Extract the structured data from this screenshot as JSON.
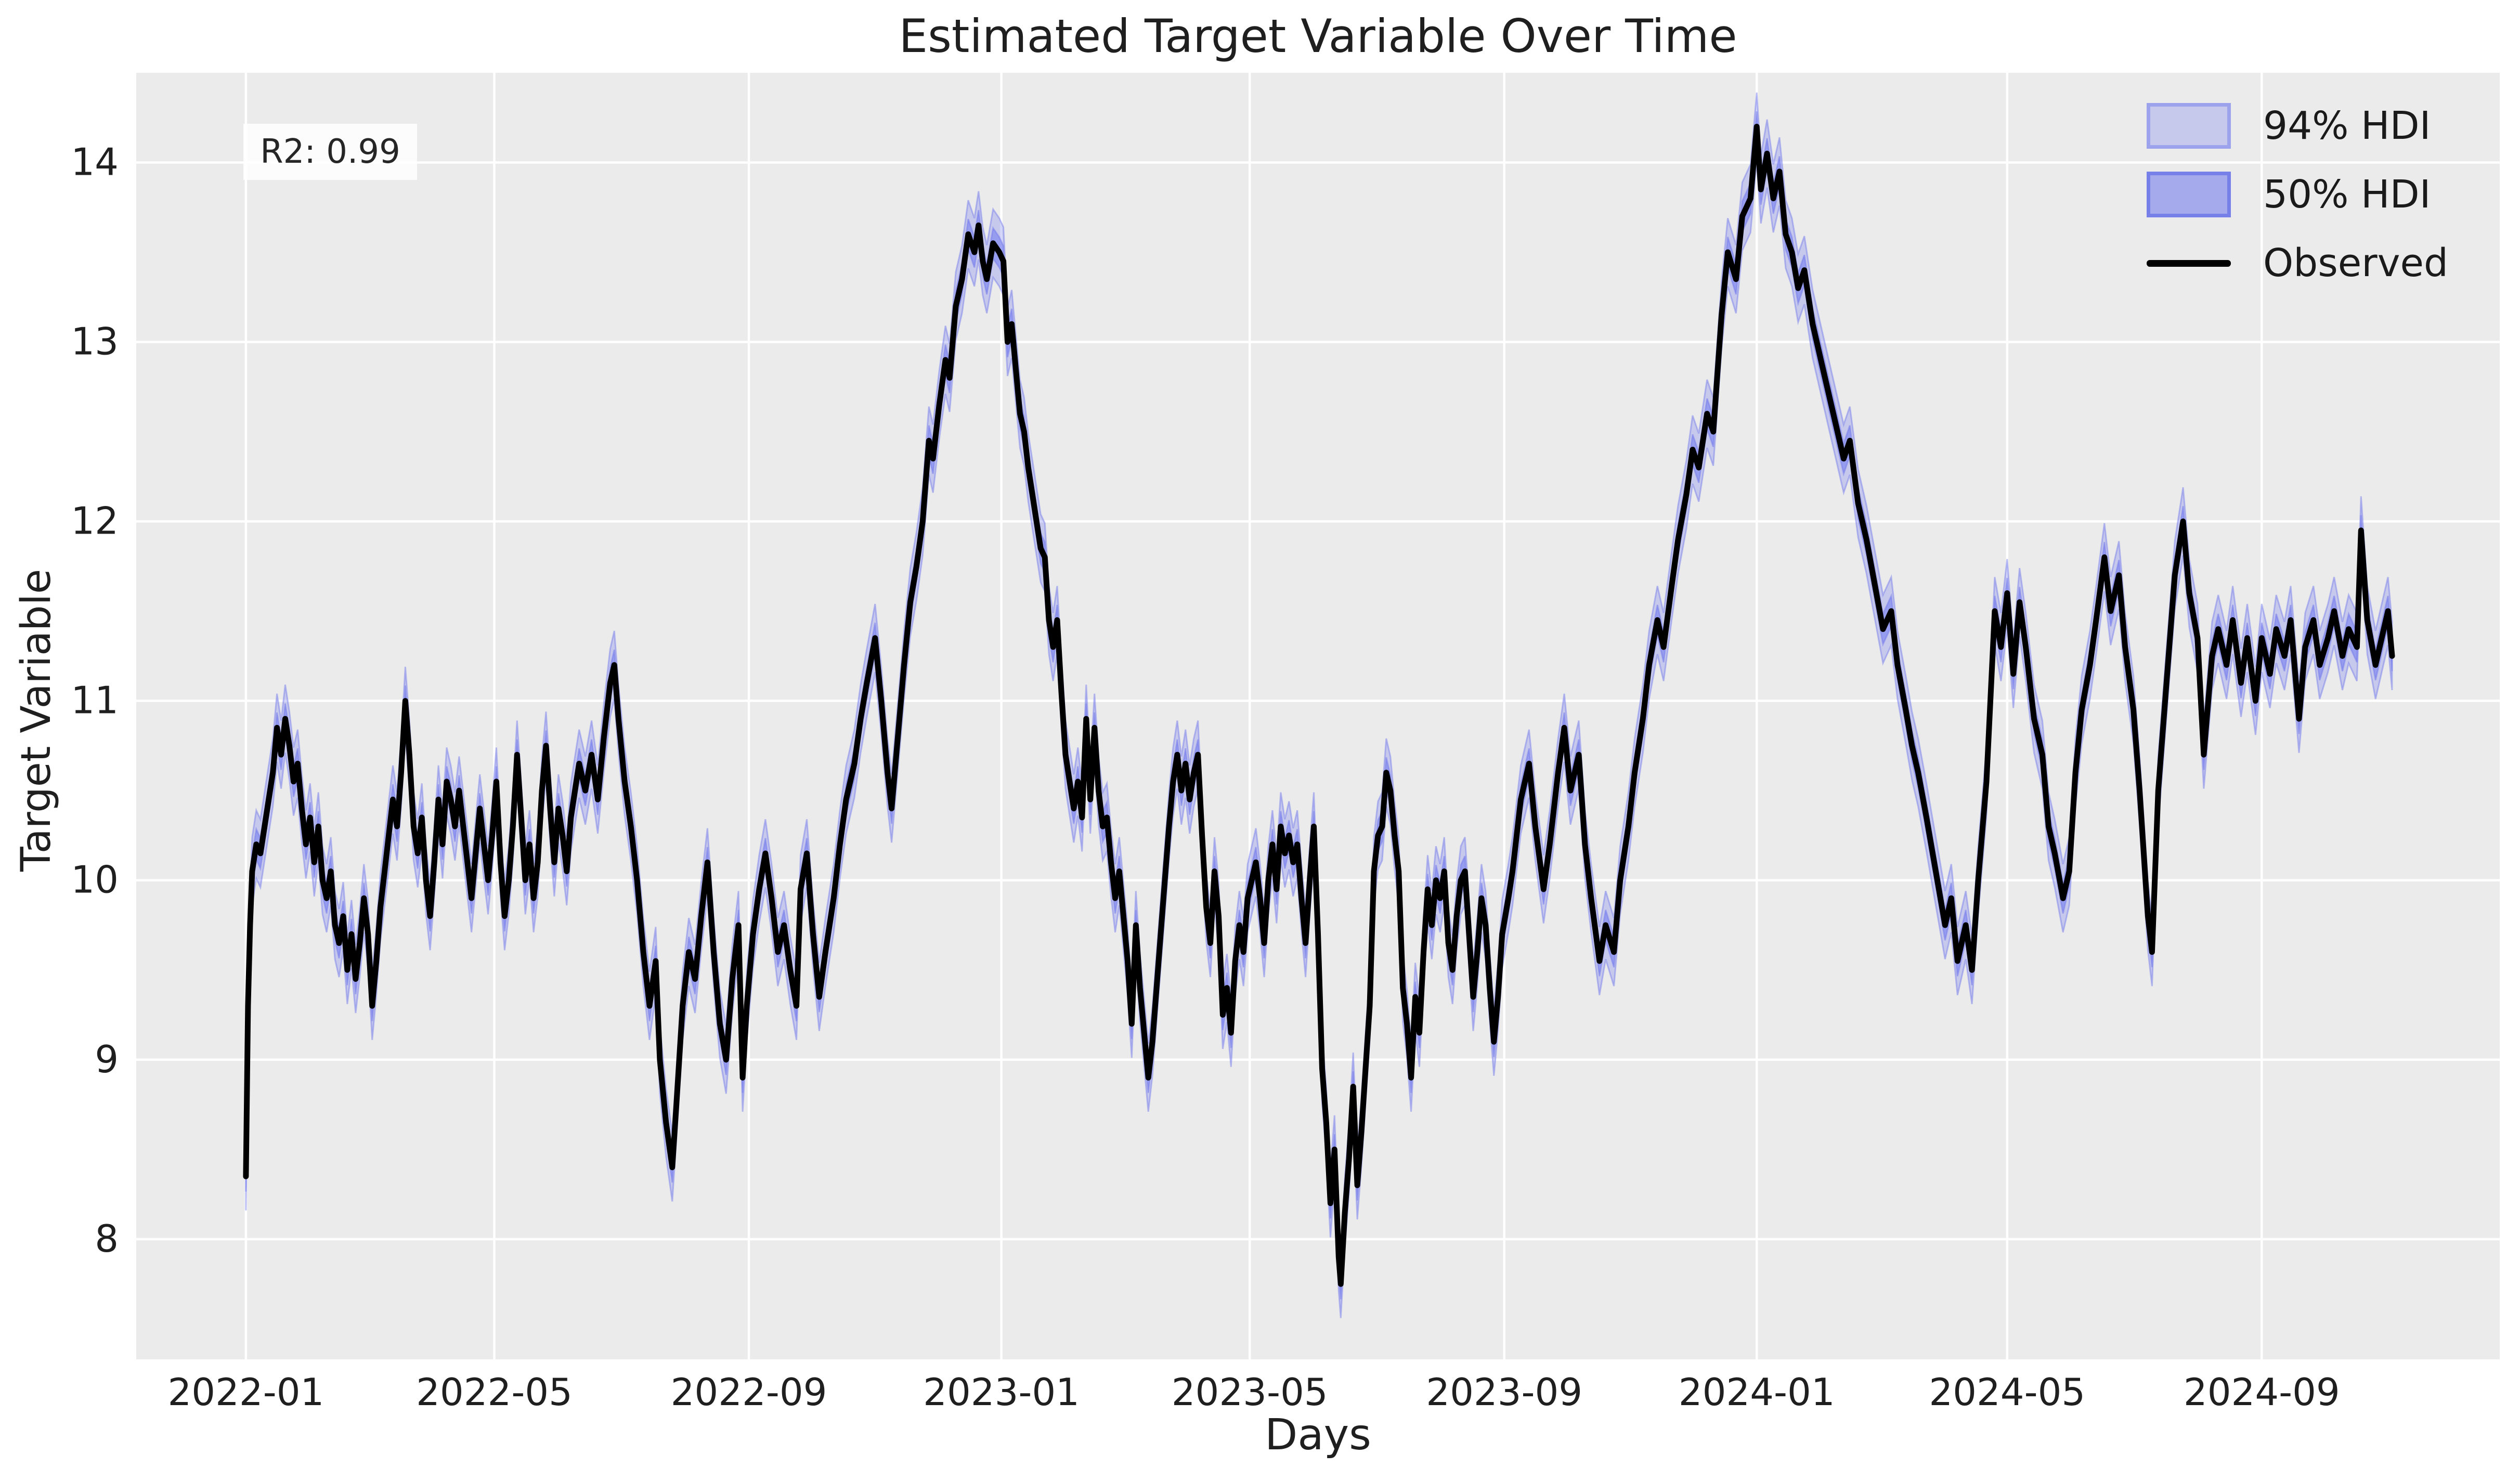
{
  "chart_data": {
    "type": "line",
    "title": "Estimated Target Variable Over Time",
    "xlabel": "Days",
    "ylabel": "Target Variable",
    "annotation": "R2: 0.99",
    "legend_position": "upper right",
    "grid": true,
    "colors": {
      "axes_background": "#ebebeb",
      "grid": "#ffffff",
      "observed_line": "#000000",
      "hdi_base": "#7b83ef",
      "hdi94_fill": "rgba(123,131,239,0.33)",
      "hdi50_fill": "rgba(123,131,239,0.62)",
      "hdi_edge": "rgba(110,118,235,0.45)",
      "text": "#1f1f1f"
    },
    "legend": [
      {
        "label": "94% HDI",
        "swatch": "band-light"
      },
      {
        "label": "50% HDI",
        "swatch": "band-dark"
      },
      {
        "label": "Observed",
        "swatch": "line"
      }
    ],
    "x_unit": "days since 2022-01-01",
    "x_domain": [
      -53,
      1089
    ],
    "ylim": [
      7.33,
      14.5
    ],
    "y_ticks": [
      8,
      9,
      10,
      11,
      12,
      13,
      14
    ],
    "x_ticks": [
      {
        "day": 0,
        "label": "2022-01"
      },
      {
        "day": 120,
        "label": "2022-05"
      },
      {
        "day": 243,
        "label": "2022-09"
      },
      {
        "day": 365,
        "label": "2023-01"
      },
      {
        "day": 485,
        "label": "2023-05"
      },
      {
        "day": 608,
        "label": "2023-09"
      },
      {
        "day": 730,
        "label": "2024-01"
      },
      {
        "day": 851,
        "label": "2024-05"
      },
      {
        "day": 974,
        "label": "2024-09"
      }
    ],
    "hdi94_halfwidth": 0.19,
    "hdi50_halfwidth": 0.085,
    "series": [
      {
        "name": "Observed",
        "x": [
          0,
          1,
          2,
          3,
          5,
          7,
          9,
          11,
          13,
          15,
          17,
          19,
          21,
          23,
          25,
          27,
          29,
          31,
          33,
          35,
          37,
          39,
          41,
          43,
          45,
          47,
          49,
          51,
          53,
          55,
          57,
          59,
          61,
          63,
          65,
          67,
          69,
          71,
          73,
          75,
          77,
          79,
          81,
          83,
          85,
          87,
          89,
          91,
          93,
          95,
          97,
          99,
          101,
          103,
          105,
          107,
          109,
          111,
          113,
          115,
          117,
          119,
          121,
          123,
          125,
          127,
          129,
          131,
          133,
          135,
          137,
          139,
          141,
          143,
          145,
          147,
          149,
          151,
          153,
          155,
          157,
          159,
          161,
          164,
          167,
          170,
          173,
          176,
          178,
          180,
          183,
          186,
          189,
          192,
          195,
          198,
          200,
          203,
          206,
          208,
          211,
          214,
          217,
          220,
          223,
          226,
          229,
          232,
          235,
          238,
          240,
          242,
          245,
          248,
          251,
          254,
          257,
          260,
          263,
          266,
          268,
          271,
          274,
          277,
          280,
          284,
          287,
          290,
          294,
          297,
          300,
          304,
          307,
          310,
          312,
          315,
          318,
          321,
          324,
          327,
          330,
          332,
          335,
          338,
          340,
          343,
          346,
          349,
          352,
          354,
          356,
          358,
          361,
          364,
          366,
          368,
          370,
          372,
          374,
          376,
          378,
          380,
          382,
          384,
          386,
          388,
          390,
          392,
          394,
          396,
          398,
          400,
          402,
          404,
          406,
          408,
          410,
          412,
          414,
          416,
          418,
          420,
          422,
          424,
          426,
          428,
          430,
          432,
          434,
          436,
          438,
          440,
          442,
          444,
          446,
          448,
          450,
          452,
          454,
          456,
          458,
          460,
          462,
          464,
          466,
          468,
          470,
          472,
          474,
          476,
          478,
          480,
          482,
          484,
          486,
          488,
          490,
          492,
          494,
          496,
          498,
          500,
          502,
          504,
          506,
          508,
          510,
          512,
          514,
          516,
          518,
          520,
          522,
          524,
          526,
          528,
          529,
          531,
          533,
          535,
          537,
          539,
          541,
          543,
          545,
          547,
          549,
          551,
          553,
          555,
          557,
          559,
          561,
          563,
          565,
          567,
          569,
          571,
          573,
          575,
          577,
          579,
          581,
          583,
          585,
          587,
          589,
          591,
          593,
          595,
          597,
          599,
          601,
          603,
          605,
          607,
          610,
          612,
          616,
          620,
          623,
          627,
          630,
          634,
          637,
          640,
          644,
          647,
          650,
          654,
          657,
          661,
          664,
          668,
          671,
          675,
          678,
          682,
          685,
          689,
          692,
          696,
          699,
          702,
          706,
          709,
          713,
          716,
          720,
          723,
          727,
          730,
          732,
          735,
          738,
          741,
          744,
          747,
          750,
          753,
          757,
          761,
          765,
          768,
          772,
          775,
          779,
          783,
          787,
          791,
          795,
          798,
          802,
          805,
          808,
          812,
          815,
          818,
          821,
          824,
          827,
          831,
          834,
          837,
          841,
          845,
          848,
          851,
          854,
          857,
          860,
          864,
          868,
          871,
          874,
          878,
          881,
          884,
          887,
          891,
          894,
          898,
          901,
          905,
          908,
          912,
          915,
          919,
          921,
          924,
          928,
          932,
          936,
          939,
          943,
          946,
          950,
          953,
          957,
          960,
          964,
          967,
          971,
          974,
          978,
          981,
          985,
          988,
          992,
          995,
          999,
          1002,
          1006,
          1009,
          1013,
          1016,
          1020,
          1022,
          1025,
          1029,
          1032,
          1035,
          1037
        ],
        "y": [
          8.35,
          9.3,
          9.75,
          10.05,
          10.2,
          10.15,
          10.3,
          10.45,
          10.6,
          10.85,
          10.7,
          10.9,
          10.75,
          10.55,
          10.65,
          10.4,
          10.2,
          10.35,
          10.1,
          10.3,
          10.0,
          9.9,
          10.05,
          9.75,
          9.65,
          9.8,
          9.5,
          9.7,
          9.45,
          9.65,
          9.9,
          9.7,
          9.3,
          9.55,
          9.85,
          10.05,
          10.25,
          10.45,
          10.3,
          10.6,
          11.0,
          10.7,
          10.3,
          10.15,
          10.35,
          10.0,
          9.8,
          10.1,
          10.45,
          10.2,
          10.55,
          10.45,
          10.3,
          10.5,
          10.3,
          10.1,
          9.9,
          10.15,
          10.4,
          10.2,
          10.0,
          10.25,
          10.55,
          10.1,
          9.8,
          10.0,
          10.3,
          10.7,
          10.35,
          10.0,
          10.2,
          9.9,
          10.1,
          10.5,
          10.75,
          10.4,
          10.1,
          10.4,
          10.25,
          10.05,
          10.35,
          10.5,
          10.65,
          10.5,
          10.7,
          10.45,
          10.8,
          11.1,
          11.2,
          10.9,
          10.55,
          10.3,
          10.0,
          9.6,
          9.3,
          9.55,
          9.0,
          8.65,
          8.4,
          8.75,
          9.3,
          9.6,
          9.45,
          9.8,
          10.1,
          9.6,
          9.2,
          9.0,
          9.45,
          9.75,
          8.9,
          9.3,
          9.7,
          9.95,
          10.15,
          9.9,
          9.6,
          9.75,
          9.5,
          9.3,
          9.95,
          10.15,
          9.7,
          9.35,
          9.6,
          9.9,
          10.2,
          10.45,
          10.65,
          10.9,
          11.1,
          11.35,
          11.0,
          10.6,
          10.4,
          10.8,
          11.2,
          11.55,
          11.75,
          12.0,
          12.45,
          12.35,
          12.65,
          12.9,
          12.8,
          13.2,
          13.35,
          13.6,
          13.5,
          13.65,
          13.45,
          13.35,
          13.55,
          13.5,
          13.45,
          13.0,
          13.1,
          12.85,
          12.6,
          12.5,
          12.3,
          12.15,
          12.0,
          11.85,
          11.8,
          11.45,
          11.3,
          11.45,
          11.05,
          10.7,
          10.55,
          10.4,
          10.55,
          10.35,
          10.9,
          10.45,
          10.85,
          10.5,
          10.3,
          10.35,
          10.1,
          9.9,
          10.05,
          9.8,
          9.55,
          9.2,
          9.75,
          9.4,
          9.15,
          8.9,
          9.1,
          9.4,
          9.7,
          10.0,
          10.3,
          10.55,
          10.7,
          10.5,
          10.65,
          10.45,
          10.6,
          10.7,
          10.25,
          9.85,
          9.65,
          10.05,
          9.8,
          9.25,
          9.4,
          9.15,
          9.55,
          9.75,
          9.6,
          9.9,
          10.0,
          10.1,
          9.9,
          9.65,
          10.0,
          10.2,
          9.95,
          10.3,
          10.15,
          10.25,
          10.1,
          10.2,
          9.9,
          9.65,
          10.0,
          10.3,
          9.7,
          8.95,
          8.65,
          8.2,
          8.5,
          7.9,
          7.75,
          8.15,
          8.45,
          8.85,
          8.3,
          8.6,
          8.95,
          9.3,
          10.05,
          10.25,
          10.3,
          10.6,
          10.5,
          10.25,
          10.05,
          9.4,
          9.2,
          8.9,
          9.35,
          9.15,
          9.6,
          9.95,
          9.75,
          10.0,
          9.9,
          10.05,
          9.65,
          9.5,
          9.8,
          10.0,
          10.05,
          9.7,
          9.35,
          9.6,
          9.9,
          9.75,
          9.4,
          9.1,
          9.35,
          9.7,
          9.9,
          10.05,
          10.45,
          10.65,
          10.3,
          9.95,
          10.2,
          10.6,
          10.85,
          10.5,
          10.7,
          10.2,
          9.9,
          9.55,
          9.75,
          9.6,
          10.0,
          10.3,
          10.6,
          10.9,
          11.2,
          11.45,
          11.3,
          11.65,
          11.9,
          12.15,
          12.4,
          12.3,
          12.6,
          12.5,
          13.15,
          13.5,
          13.35,
          13.7,
          13.8,
          14.2,
          13.85,
          14.05,
          13.8,
          13.95,
          13.6,
          13.5,
          13.3,
          13.4,
          13.1,
          12.9,
          12.7,
          12.55,
          12.35,
          12.45,
          12.1,
          11.9,
          11.65,
          11.4,
          11.5,
          11.2,
          10.95,
          10.75,
          10.6,
          10.35,
          10.15,
          9.95,
          9.75,
          9.9,
          9.55,
          9.75,
          9.5,
          10.0,
          10.55,
          11.5,
          11.3,
          11.6,
          11.15,
          11.55,
          11.3,
          10.9,
          10.7,
          10.3,
          10.15,
          9.9,
          10.05,
          10.6,
          10.95,
          11.2,
          11.45,
          11.8,
          11.5,
          11.7,
          11.3,
          10.95,
          10.5,
          9.8,
          9.6,
          10.5,
          11.1,
          11.7,
          12.0,
          11.6,
          11.35,
          10.7,
          11.25,
          11.4,
          11.2,
          11.45,
          11.1,
          11.35,
          11.0,
          11.35,
          11.15,
          11.4,
          11.25,
          11.45,
          10.9,
          11.3,
          11.45,
          11.2,
          11.35,
          11.5,
          11.25,
          11.4,
          11.3,
          11.95,
          11.45,
          11.2,
          11.35,
          11.5,
          11.25
        ]
      }
    ]
  }
}
